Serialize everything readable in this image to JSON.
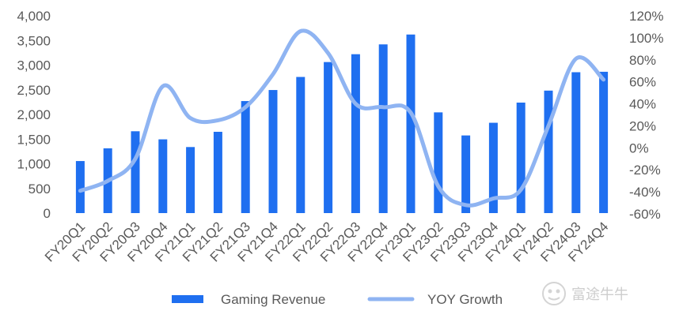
{
  "chart_data": {
    "type": "bar",
    "categories": [
      "FY20Q1",
      "FY20Q2",
      "FY20Q3",
      "FY20Q4",
      "FY21Q1",
      "FY21Q2",
      "FY21Q3",
      "FY21Q4",
      "FY22Q1",
      "FY22Q2",
      "FY22Q3",
      "FY22Q4",
      "FY23Q1",
      "FY23Q2",
      "FY23Q3",
      "FY23Q4",
      "FY24Q1",
      "FY24Q2",
      "FY24Q3",
      "FY24Q4"
    ],
    "series": [
      {
        "name": "Gaming Revenue",
        "type": "bar",
        "axis": "left",
        "color": "#1f6ff0",
        "values": [
          1055,
          1313,
          1659,
          1495,
          1339,
          1648,
          2271,
          2495,
          2760,
          3062,
          3221,
          3420,
          3620,
          2042,
          1574,
          1831,
          2240,
          2483,
          2856,
          2865
        ]
      },
      {
        "name": "YOY Growth",
        "type": "line",
        "axis": "right",
        "color": "#8fb4f2",
        "values": [
          -0.39,
          -0.3,
          -0.1,
          0.56,
          0.27,
          0.25,
          0.37,
          0.67,
          1.06,
          0.86,
          0.4,
          0.37,
          0.32,
          -0.35,
          -0.52,
          -0.46,
          -0.38,
          0.2,
          0.81,
          0.62
        ]
      }
    ],
    "y_left": {
      "min": 0,
      "max": 4000,
      "step": 500,
      "tick_labels": [
        "0",
        "500",
        "1,000",
        "1,500",
        "2,000",
        "2,500",
        "3,000",
        "3,500",
        "4,000"
      ]
    },
    "y_right": {
      "min": -0.6,
      "max": 1.2,
      "step": 0.2,
      "tick_labels": [
        "-60%",
        "-40%",
        "-20%",
        "0%",
        "20%",
        "40%",
        "60%",
        "80%",
        "100%",
        "120%"
      ]
    },
    "grid": false,
    "legend_position": "bottom"
  },
  "watermark": {
    "text": "富途牛牛",
    "icon": "moomoo-logo-icon"
  }
}
